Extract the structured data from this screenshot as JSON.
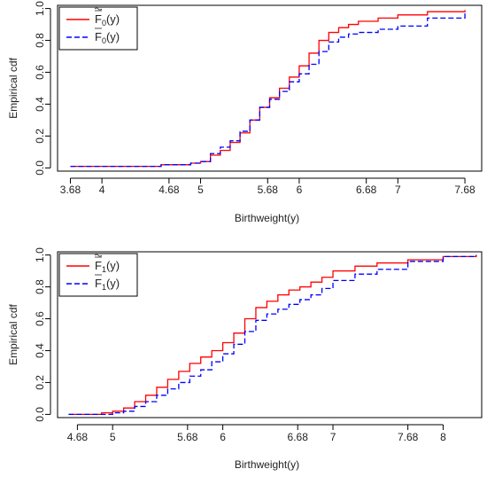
{
  "chart_data": [
    {
      "type": "line",
      "step": true,
      "xlabel": "Birthweight(y)",
      "ylabel": "Empirical cdf",
      "xlim": [
        3.55,
        7.85
      ],
      "ylim": [
        -0.02,
        1.02
      ],
      "xticks": [
        3.68,
        4,
        4.68,
        5,
        5.68,
        6,
        6.68,
        7,
        7.68
      ],
      "xtick_labels": [
        "3.68",
        "4",
        "4.68",
        "5",
        "5.68",
        "6",
        "6.68",
        "7",
        "7.68"
      ],
      "yticks": [
        0.0,
        0.2,
        0.4,
        0.6,
        0.8,
        1.0
      ],
      "ytick_labels": [
        "0.0",
        "0.2",
        "0.4",
        "0.6",
        "0.8",
        "1.0"
      ],
      "legend": {
        "position": "top-left"
      },
      "series": [
        {
          "name": "F̃0(y)",
          "legend_main": "F",
          "legend_sub": "0",
          "legend_suffix": "(y)",
          "color": "#ff0000",
          "dash": "solid",
          "x": [
            3.68,
            4.0,
            4.3,
            4.6,
            4.9,
            5.0,
            5.1,
            5.2,
            5.3,
            5.4,
            5.5,
            5.6,
            5.7,
            5.8,
            5.9,
            6.0,
            6.1,
            6.2,
            6.3,
            6.4,
            6.5,
            6.6,
            6.8,
            7.0,
            7.3,
            7.68
          ],
          "y": [
            0.01,
            0.01,
            0.01,
            0.02,
            0.03,
            0.04,
            0.08,
            0.11,
            0.16,
            0.22,
            0.3,
            0.38,
            0.44,
            0.5,
            0.57,
            0.64,
            0.72,
            0.8,
            0.85,
            0.88,
            0.9,
            0.92,
            0.94,
            0.96,
            0.98,
            0.99
          ]
        },
        {
          "name": "F0(y)",
          "legend_main": "F",
          "legend_sub": "0",
          "legend_suffix": "(y)",
          "color": "#0000ff",
          "dash": "dashed",
          "x": [
            3.68,
            4.0,
            4.3,
            4.6,
            4.9,
            5.0,
            5.1,
            5.2,
            5.3,
            5.4,
            5.5,
            5.6,
            5.7,
            5.8,
            5.9,
            6.0,
            6.1,
            6.2,
            6.3,
            6.4,
            6.5,
            6.6,
            6.8,
            7.0,
            7.3,
            7.68
          ],
          "y": [
            0.01,
            0.01,
            0.01,
            0.02,
            0.03,
            0.04,
            0.09,
            0.13,
            0.17,
            0.23,
            0.3,
            0.38,
            0.43,
            0.48,
            0.54,
            0.59,
            0.65,
            0.73,
            0.79,
            0.82,
            0.84,
            0.85,
            0.87,
            0.89,
            0.94,
            0.97
          ]
        }
      ]
    },
    {
      "type": "line",
      "step": true,
      "xlabel": "Birthweight(y)",
      "ylabel": "Empirical cdf",
      "xlim": [
        4.5,
        8.35
      ],
      "ylim": [
        -0.02,
        1.02
      ],
      "xticks": [
        4.68,
        5,
        5.68,
        6,
        6.68,
        7,
        7.68,
        8
      ],
      "xtick_labels": [
        "4.68",
        "5",
        "5.68",
        "6",
        "6.68",
        "7",
        "7.68",
        "8"
      ],
      "yticks": [
        0.0,
        0.2,
        0.4,
        0.6,
        0.8,
        1.0
      ],
      "ytick_labels": [
        "0.0",
        "0.2",
        "0.4",
        "0.6",
        "0.8",
        "1.0"
      ],
      "legend": {
        "position": "top-left"
      },
      "series": [
        {
          "name": "F̃1(y)",
          "legend_main": "F",
          "legend_sub": "1",
          "legend_suffix": "(y)",
          "color": "#ff0000",
          "dash": "solid",
          "x": [
            4.6,
            4.9,
            5.0,
            5.1,
            5.2,
            5.3,
            5.4,
            5.5,
            5.6,
            5.7,
            5.8,
            5.9,
            6.0,
            6.1,
            6.2,
            6.3,
            6.4,
            6.5,
            6.6,
            6.7,
            6.8,
            6.9,
            7.0,
            7.2,
            7.4,
            7.68,
            8.0,
            8.3
          ],
          "y": [
            0.0,
            0.01,
            0.02,
            0.04,
            0.08,
            0.12,
            0.17,
            0.22,
            0.27,
            0.32,
            0.36,
            0.4,
            0.45,
            0.51,
            0.6,
            0.67,
            0.71,
            0.75,
            0.78,
            0.8,
            0.83,
            0.86,
            0.9,
            0.93,
            0.95,
            0.97,
            0.99,
            1.0
          ]
        },
        {
          "name": "F1(y)",
          "legend_main": "F",
          "legend_sub": "1",
          "legend_suffix": "(y)",
          "color": "#0000ff",
          "dash": "dashed",
          "x": [
            4.6,
            4.9,
            5.0,
            5.1,
            5.2,
            5.3,
            5.4,
            5.5,
            5.6,
            5.7,
            5.8,
            5.9,
            6.0,
            6.1,
            6.2,
            6.3,
            6.4,
            6.5,
            6.6,
            6.7,
            6.8,
            6.9,
            7.0,
            7.2,
            7.4,
            7.68,
            8.0,
            8.3
          ],
          "y": [
            0.0,
            0.0,
            0.01,
            0.02,
            0.05,
            0.08,
            0.12,
            0.16,
            0.2,
            0.24,
            0.28,
            0.33,
            0.38,
            0.44,
            0.52,
            0.59,
            0.63,
            0.66,
            0.69,
            0.72,
            0.75,
            0.79,
            0.84,
            0.88,
            0.91,
            0.96,
            0.99,
            1.0
          ]
        }
      ]
    }
  ]
}
